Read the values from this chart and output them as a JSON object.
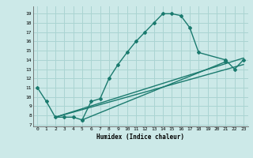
{
  "xlabel": "Humidex (Indice chaleur)",
  "bg_color": "#cce9e8",
  "grid_color": "#aad4d2",
  "line_color": "#1a7a6e",
  "xlim": [
    -0.5,
    23.5
  ],
  "ylim": [
    6.8,
    19.8
  ],
  "xticks": [
    0,
    1,
    2,
    3,
    4,
    5,
    6,
    7,
    8,
    9,
    10,
    11,
    12,
    13,
    14,
    15,
    16,
    17,
    18,
    19,
    20,
    21,
    22,
    23
  ],
  "yticks": [
    7,
    8,
    9,
    10,
    11,
    12,
    13,
    14,
    15,
    16,
    17,
    18,
    19
  ],
  "curve1_x": [
    0,
    1,
    2,
    3,
    4,
    5,
    6,
    7,
    8,
    9,
    10,
    11,
    12,
    13,
    14,
    15,
    16,
    17,
    18,
    21,
    22,
    23
  ],
  "curve1_y": [
    11,
    9.5,
    7.8,
    7.8,
    7.8,
    7.5,
    9.5,
    9.8,
    12,
    13.5,
    14.8,
    16,
    17,
    18,
    19,
    19,
    18.8,
    17.5,
    14.8,
    14,
    13,
    14
  ],
  "line2_x": [
    2,
    23
  ],
  "line2_y": [
    7.8,
    14.2
  ],
  "line3_x": [
    2,
    23
  ],
  "line3_y": [
    7.8,
    13.5
  ],
  "line4_x": [
    5,
    21
  ],
  "line4_y": [
    7.5,
    13.8
  ],
  "marker_style": "D",
  "marker_size": 2,
  "line_width": 1.0
}
